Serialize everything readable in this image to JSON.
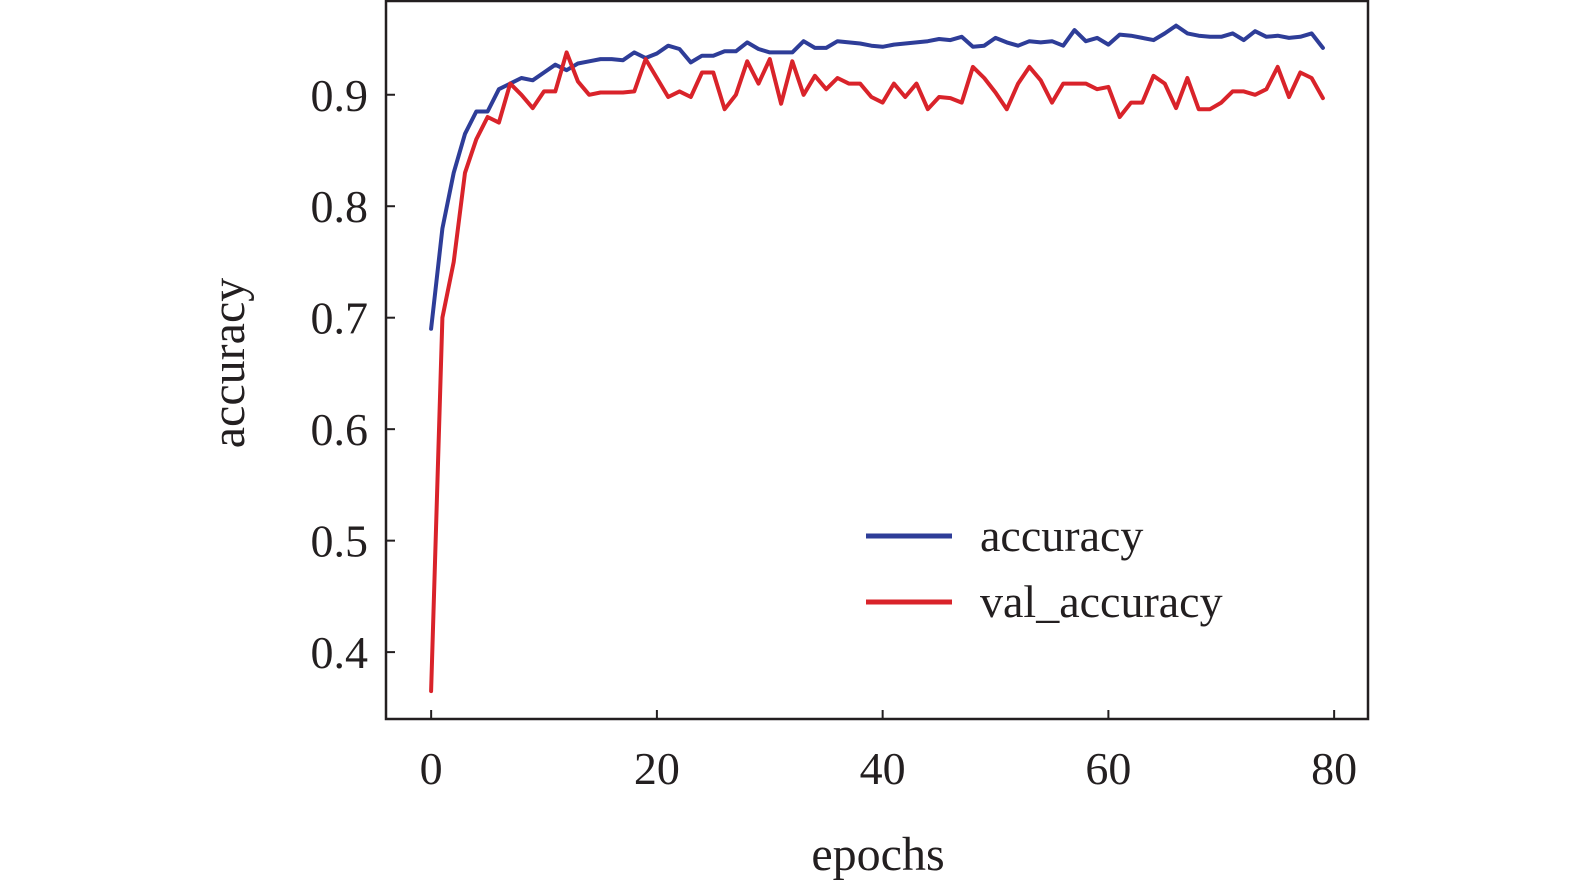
{
  "chart_data": {
    "type": "line",
    "title": "",
    "xlabel": "epochs",
    "ylabel": "accuracy",
    "xlim": [
      -4,
      83
    ],
    "ylim": [
      0.34,
      0.985
    ],
    "xticks": [
      0,
      20,
      40,
      60,
      80
    ],
    "xtick_labels": [
      "0",
      "20",
      "40",
      "60",
      "80"
    ],
    "yticks": [
      0.4,
      0.5,
      0.6,
      0.7,
      0.8,
      0.9
    ],
    "ytick_labels": [
      "0.4",
      "0.5",
      "0.6",
      "0.7",
      "0.8",
      "0.9"
    ],
    "grid": false,
    "legend_position": "lower-right",
    "x": [
      0,
      1,
      2,
      3,
      4,
      5,
      6,
      7,
      8,
      9,
      10,
      11,
      12,
      13,
      14,
      15,
      16,
      17,
      18,
      19,
      20,
      21,
      22,
      23,
      24,
      25,
      26,
      27,
      28,
      29,
      30,
      31,
      32,
      33,
      34,
      35,
      36,
      37,
      38,
      39,
      40,
      41,
      42,
      43,
      44,
      45,
      46,
      47,
      48,
      49,
      50,
      51,
      52,
      53,
      54,
      55,
      56,
      57,
      58,
      59,
      60,
      61,
      62,
      63,
      64,
      65,
      66,
      67,
      68,
      69,
      70,
      71,
      72,
      73,
      74,
      75,
      76,
      77,
      78,
      79
    ],
    "series": [
      {
        "name": "accuracy",
        "color": "#2e3d98",
        "values": [
          0.69,
          0.78,
          0.83,
          0.865,
          0.885,
          0.885,
          0.905,
          0.91,
          0.915,
          0.913,
          0.92,
          0.927,
          0.922,
          0.928,
          0.93,
          0.932,
          0.932,
          0.931,
          0.938,
          0.933,
          0.937,
          0.944,
          0.941,
          0.929,
          0.935,
          0.935,
          0.939,
          0.939,
          0.947,
          0.941,
          0.938,
          0.938,
          0.938,
          0.948,
          0.942,
          0.942,
          0.948,
          0.947,
          0.946,
          0.944,
          0.943,
          0.945,
          0.946,
          0.947,
          0.948,
          0.95,
          0.949,
          0.952,
          0.943,
          0.944,
          0.951,
          0.947,
          0.944,
          0.948,
          0.947,
          0.948,
          0.944,
          0.958,
          0.948,
          0.951,
          0.945,
          0.954,
          0.953,
          0.951,
          0.949,
          0.955,
          0.962,
          0.955,
          0.953,
          0.952,
          0.952,
          0.955,
          0.949,
          0.957,
          0.952,
          0.953,
          0.951,
          0.952,
          0.955,
          0.942
        ]
      },
      {
        "name": "val_accuracy",
        "color": "#d9232a",
        "values": [
          0.365,
          0.7,
          0.75,
          0.83,
          0.86,
          0.88,
          0.875,
          0.91,
          0.9,
          0.888,
          0.903,
          0.903,
          0.938,
          0.912,
          0.9,
          0.902,
          0.902,
          0.902,
          0.903,
          0.932,
          0.915,
          0.898,
          0.903,
          0.898,
          0.92,
          0.92,
          0.887,
          0.9,
          0.93,
          0.91,
          0.932,
          0.892,
          0.93,
          0.9,
          0.917,
          0.905,
          0.915,
          0.91,
          0.91,
          0.898,
          0.893,
          0.91,
          0.898,
          0.91,
          0.887,
          0.898,
          0.897,
          0.893,
          0.925,
          0.915,
          0.902,
          0.887,
          0.91,
          0.925,
          0.913,
          0.893,
          0.91,
          0.91,
          0.91,
          0.905,
          0.907,
          0.88,
          0.893,
          0.893,
          0.917,
          0.91,
          0.888,
          0.915,
          0.887,
          0.887,
          0.893,
          0.903,
          0.903,
          0.9,
          0.905,
          0.925,
          0.898,
          0.92,
          0.915,
          0.897
        ]
      }
    ]
  }
}
